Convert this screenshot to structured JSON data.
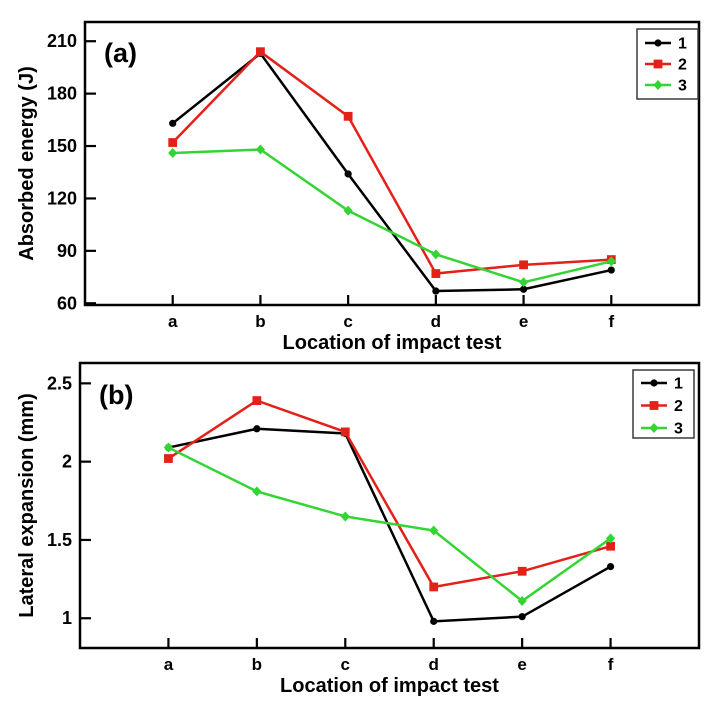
{
  "chart_data": [
    {
      "type": "line",
      "panel_label": "(a)",
      "xlabel": "Location of impact test",
      "ylabel": "Absorbed energy (J)",
      "categories": [
        "a",
        "b",
        "c",
        "d",
        "e",
        "f"
      ],
      "yticks": [
        60,
        90,
        120,
        150,
        180,
        210
      ],
      "ylim": [
        59,
        221
      ],
      "grid": false,
      "legend_position": "top-right",
      "series": [
        {
          "name": "1",
          "color": "#000000",
          "marker": "circle",
          "values": [
            163,
            203,
            134,
            67,
            68,
            79
          ]
        },
        {
          "name": "2",
          "color": "#e32119",
          "marker": "square",
          "values": [
            152,
            204,
            167,
            77,
            82,
            85
          ]
        },
        {
          "name": "3",
          "color": "#33d433",
          "marker": "diamond",
          "values": [
            146,
            148,
            113,
            88,
            72,
            84
          ]
        }
      ]
    },
    {
      "type": "line",
      "panel_label": "(b)",
      "xlabel": "Location of impact test",
      "ylabel": "Lateral expansion (mm)",
      "categories": [
        "a",
        "b",
        "c",
        "d",
        "e",
        "f"
      ],
      "yticks": [
        1,
        1.5,
        2,
        2.5
      ],
      "ylim": [
        0.81,
        2.63
      ],
      "grid": false,
      "legend_position": "top-right",
      "series": [
        {
          "name": "1",
          "color": "#000000",
          "marker": "circle",
          "values": [
            2.09,
            2.21,
            2.18,
            0.98,
            1.01,
            1.33
          ]
        },
        {
          "name": "2",
          "color": "#e32119",
          "marker": "square",
          "values": [
            2.02,
            2.39,
            2.19,
            1.2,
            1.3,
            1.46
          ]
        },
        {
          "name": "3",
          "color": "#33d433",
          "marker": "diamond",
          "values": [
            2.09,
            1.81,
            1.65,
            1.56,
            1.11,
            1.51
          ]
        }
      ]
    }
  ],
  "style": {
    "axis_color": "#000000",
    "legend_border_color": "#3a3a3a",
    "background": "#ffffff"
  }
}
